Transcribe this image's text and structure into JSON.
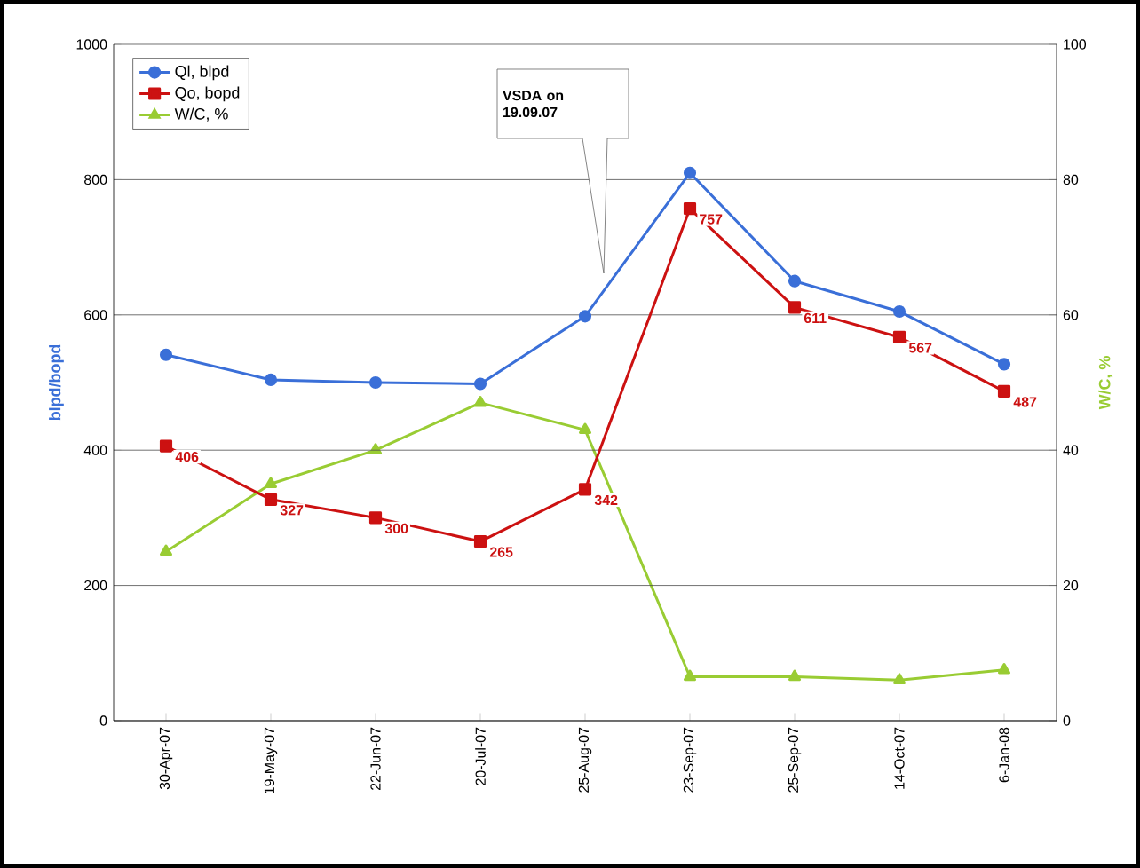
{
  "chart_data": {
    "type": "line",
    "ylabel": "blpd/bopd",
    "y2label": "W/C, %",
    "categories": [
      "30-Apr-07",
      "19-May-07",
      "22-Jun-07",
      "20-Jul-07",
      "25-Aug-07",
      "23-Sep-07",
      "25-Sep-07",
      "14-Oct-07",
      "6-Jan-08"
    ],
    "series": [
      {
        "name": "Ql, blpd",
        "color": "#3a6fd8",
        "marker": "circle",
        "values": [
          541,
          504,
          500,
          498,
          598,
          810,
          650,
          605,
          527
        ]
      },
      {
        "name": "Qo, bopd",
        "color": "#cc1111",
        "marker": "square",
        "values": [
          406,
          327,
          300,
          265,
          342,
          757,
          611,
          567,
          487
        ],
        "value_labels": [
          "406",
          "327",
          "300",
          "265",
          "342",
          "757",
          "611",
          "567",
          "487"
        ]
      },
      {
        "name": "W/C, %",
        "color": "#99cc33",
        "marker": "triangle",
        "axis": "y2",
        "values": [
          25,
          35,
          40,
          47,
          43,
          6.5,
          6.5,
          6,
          7.5
        ]
      }
    ],
    "ylim": [
      0,
      1000
    ],
    "yticks": [
      0,
      200,
      400,
      600,
      800,
      1000
    ],
    "y2lim": [
      0,
      100
    ],
    "y2ticks": [
      0,
      20,
      40,
      60,
      80,
      100
    ],
    "grid": "y",
    "legend": "top left",
    "annotations": [
      "VSDA on 19.09.07"
    ]
  }
}
